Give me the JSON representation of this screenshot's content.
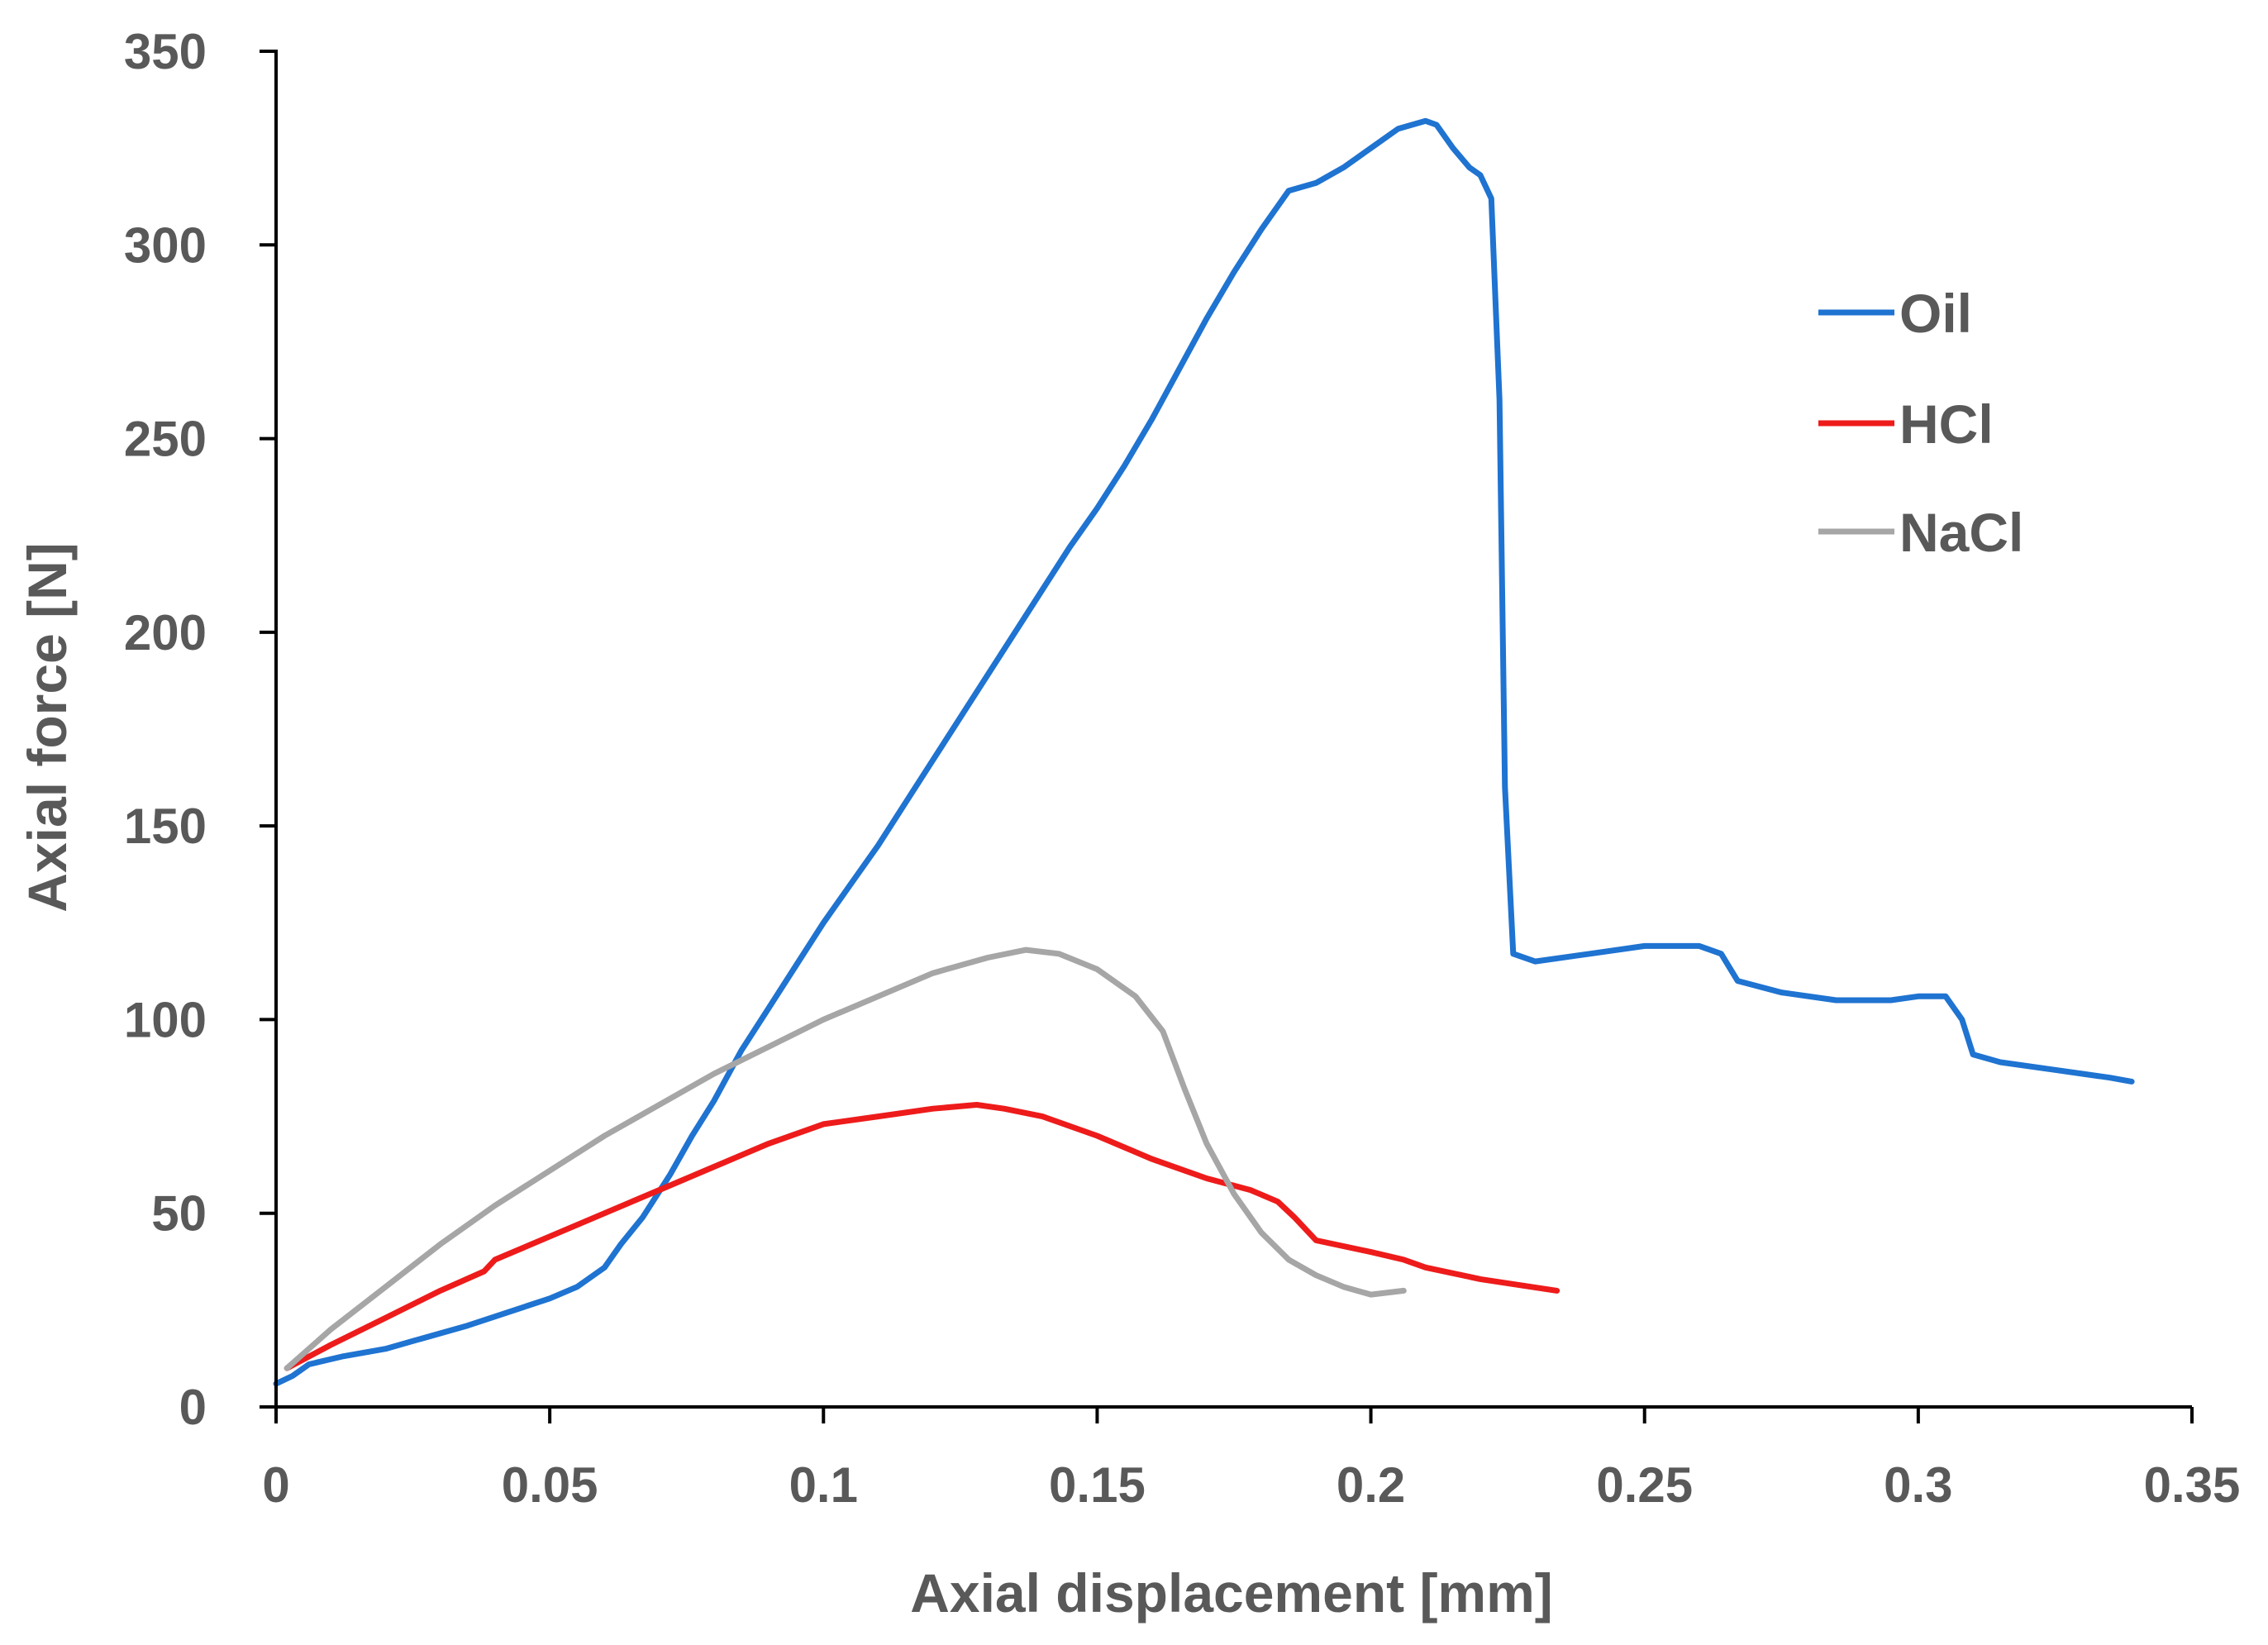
{
  "chart_data": {
    "type": "line",
    "title": "",
    "xlabel": "Axial displacement [mm]",
    "ylabel": "Axial force [N]",
    "xlim": [
      0,
      0.35
    ],
    "ylim": [
      0,
      350
    ],
    "x_ticks": [
      "0",
      "0.05",
      "0.1",
      "0.15",
      "0.2",
      "0.25",
      "0.3",
      "0.35"
    ],
    "y_ticks": [
      "0",
      "50",
      "100",
      "150",
      "200",
      "250",
      "300",
      "350"
    ],
    "grid": false,
    "legend_position": "top-right",
    "series": [
      {
        "name": "Oil",
        "color": "#1f73d1",
        "points": [
          [
            0.0,
            6
          ],
          [
            0.003,
            8
          ],
          [
            0.006,
            11
          ],
          [
            0.012,
            13
          ],
          [
            0.02,
            15
          ],
          [
            0.025,
            17
          ],
          [
            0.035,
            21
          ],
          [
            0.05,
            28
          ],
          [
            0.055,
            31
          ],
          [
            0.058,
            34
          ],
          [
            0.06,
            36
          ],
          [
            0.063,
            42
          ],
          [
            0.067,
            49
          ],
          [
            0.072,
            60
          ],
          [
            0.076,
            70
          ],
          [
            0.08,
            79
          ],
          [
            0.085,
            92
          ],
          [
            0.09,
            103
          ],
          [
            0.095,
            114
          ],
          [
            0.1,
            125
          ],
          [
            0.105,
            135
          ],
          [
            0.11,
            145
          ],
          [
            0.115,
            156
          ],
          [
            0.12,
            167
          ],
          [
            0.125,
            178
          ],
          [
            0.13,
            189
          ],
          [
            0.135,
            200
          ],
          [
            0.14,
            211
          ],
          [
            0.145,
            222
          ],
          [
            0.15,
            232
          ],
          [
            0.155,
            243
          ],
          [
            0.16,
            255
          ],
          [
            0.165,
            268
          ],
          [
            0.17,
            281
          ],
          [
            0.175,
            293
          ],
          [
            0.18,
            304
          ],
          [
            0.185,
            314
          ],
          [
            0.19,
            316
          ],
          [
            0.195,
            320
          ],
          [
            0.2,
            325
          ],
          [
            0.205,
            330
          ],
          [
            0.21,
            332
          ],
          [
            0.212,
            331
          ],
          [
            0.215,
            325
          ],
          [
            0.218,
            320
          ],
          [
            0.22,
            318
          ],
          [
            0.222,
            312
          ],
          [
            0.2235,
            260
          ],
          [
            0.2245,
            160
          ],
          [
            0.226,
            117
          ],
          [
            0.23,
            115
          ],
          [
            0.24,
            117
          ],
          [
            0.25,
            119
          ],
          [
            0.26,
            119
          ],
          [
            0.264,
            117
          ],
          [
            0.267,
            110
          ],
          [
            0.275,
            107
          ],
          [
            0.285,
            105
          ],
          [
            0.295,
            105
          ],
          [
            0.3,
            106
          ],
          [
            0.305,
            106
          ],
          [
            0.308,
            100
          ],
          [
            0.31,
            91
          ],
          [
            0.315,
            89
          ],
          [
            0.325,
            87
          ],
          [
            0.33,
            86
          ],
          [
            0.335,
            85
          ],
          [
            0.339,
            84
          ]
        ]
      },
      {
        "name": "HCl",
        "color": "#ee1b1b",
        "points": [
          [
            0.002,
            10
          ],
          [
            0.01,
            16
          ],
          [
            0.02,
            23
          ],
          [
            0.03,
            30
          ],
          [
            0.038,
            35
          ],
          [
            0.04,
            38
          ],
          [
            0.05,
            44
          ],
          [
            0.06,
            50
          ],
          [
            0.07,
            56
          ],
          [
            0.08,
            62
          ],
          [
            0.09,
            68
          ],
          [
            0.1,
            73
          ],
          [
            0.11,
            75
          ],
          [
            0.12,
            77
          ],
          [
            0.128,
            78
          ],
          [
            0.133,
            77
          ],
          [
            0.14,
            75
          ],
          [
            0.15,
            70
          ],
          [
            0.16,
            64
          ],
          [
            0.17,
            59
          ],
          [
            0.178,
            56
          ],
          [
            0.183,
            53
          ],
          [
            0.186,
            49
          ],
          [
            0.19,
            43
          ],
          [
            0.2,
            40
          ],
          [
            0.206,
            38
          ],
          [
            0.21,
            36
          ],
          [
            0.22,
            33
          ],
          [
            0.234,
            30
          ]
        ]
      },
      {
        "name": "NaCl",
        "color": "#a6a6a6",
        "points": [
          [
            0.002,
            10
          ],
          [
            0.01,
            20
          ],
          [
            0.02,
            31
          ],
          [
            0.03,
            42
          ],
          [
            0.04,
            52
          ],
          [
            0.05,
            61
          ],
          [
            0.06,
            70
          ],
          [
            0.07,
            78
          ],
          [
            0.08,
            86
          ],
          [
            0.09,
            93
          ],
          [
            0.1,
            100
          ],
          [
            0.11,
            106
          ],
          [
            0.12,
            112
          ],
          [
            0.13,
            116
          ],
          [
            0.137,
            118
          ],
          [
            0.143,
            117
          ],
          [
            0.15,
            113
          ],
          [
            0.157,
            106
          ],
          [
            0.162,
            97
          ],
          [
            0.166,
            82
          ],
          [
            0.17,
            68
          ],
          [
            0.175,
            55
          ],
          [
            0.18,
            45
          ],
          [
            0.185,
            38
          ],
          [
            0.19,
            34
          ],
          [
            0.195,
            31
          ],
          [
            0.2,
            29
          ],
          [
            0.206,
            30
          ]
        ]
      }
    ]
  }
}
